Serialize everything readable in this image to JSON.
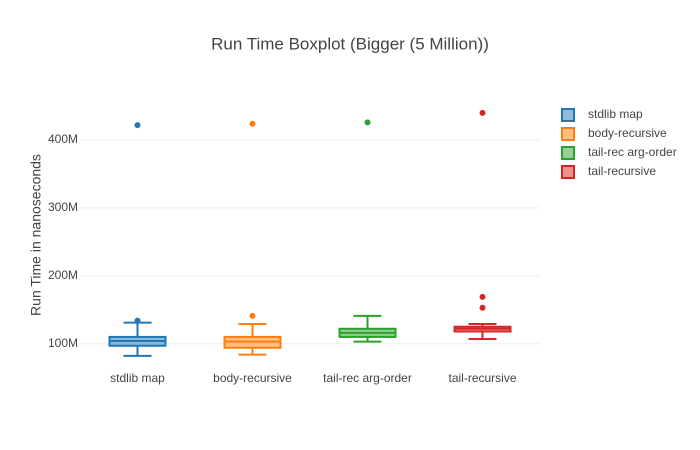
{
  "chart_data": {
    "type": "box",
    "title": "Run Time Boxplot (Bigger (5 Million))",
    "y_label": "Run Time in nanoseconds",
    "categories": [
      "stdlib map",
      "body-recursive",
      "tail-rec arg-order",
      "tail-recursive"
    ],
    "series": [
      {
        "name": "stdlib map",
        "color": "#1f77b4",
        "min": 82000000,
        "q1": 97000000,
        "median": 104000000,
        "q3": 110000000,
        "max": 131000000,
        "outliers": [
          134000000,
          422000000
        ]
      },
      {
        "name": "body-recursive",
        "color": "#ff7f0e",
        "min": 84000000,
        "q1": 94000000,
        "median": 103000000,
        "q3": 110000000,
        "max": 129000000,
        "outliers": [
          141000000,
          424000000
        ]
      },
      {
        "name": "tail-rec arg-order",
        "color": "#2ca02c",
        "min": 103000000,
        "q1": 110000000,
        "median": 116000000,
        "q3": 122000000,
        "max": 141000000,
        "outliers": [
          426000000
        ]
      },
      {
        "name": "tail-recursive",
        "color": "#d62728",
        "min": 107000000,
        "q1": 118000000,
        "median": 122000000,
        "q3": 125000000,
        "max": 129000000,
        "outliers": [
          153000000,
          169000000,
          440000000
        ]
      }
    ],
    "ylim": [
      76000000,
      459000000
    ],
    "yticks": [
      {
        "value": 100000000,
        "label": "100M"
      },
      {
        "value": 200000000,
        "label": "200M"
      },
      {
        "value": 300000000,
        "label": "300M"
      },
      {
        "value": 400000000,
        "label": "400M"
      }
    ],
    "grid": true,
    "legend": "right"
  }
}
